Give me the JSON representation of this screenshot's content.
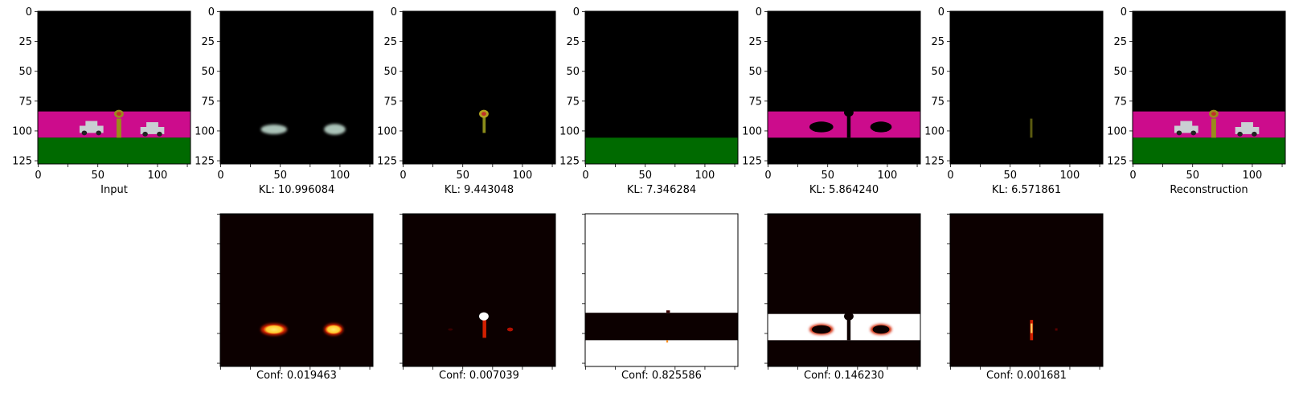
{
  "chart_data": {
    "type": "image-grid",
    "axis_range": [
      0,
      127
    ],
    "ticks": [
      0,
      25,
      50,
      75,
      100,
      125
    ],
    "xtick_labels": [
      "0",
      "50",
      "100"
    ],
    "ytick_labels": [
      "0",
      "25",
      "50",
      "75",
      "100",
      "125"
    ],
    "top_row": [
      {
        "label": "Input",
        "kind": "scene"
      },
      {
        "label": "KL: 10.996084",
        "kind": "cars"
      },
      {
        "label": "KL: 9.443048",
        "kind": "hydrant"
      },
      {
        "label": "KL: 7.346284",
        "kind": "ground"
      },
      {
        "label": "KL: 5.864240",
        "kind": "road"
      },
      {
        "label": "KL: 6.571861",
        "kind": "pole"
      },
      {
        "label": "Reconstruction",
        "kind": "scene"
      }
    ],
    "bottom_row": [
      {
        "label": "Conf: 0.019463",
        "value": 0.019463,
        "kind": "cars"
      },
      {
        "label": "Conf: 0.007039",
        "value": 0.007039,
        "kind": "hydrant"
      },
      {
        "label": "Conf: 0.825586",
        "value": 0.825586,
        "kind": "ground"
      },
      {
        "label": "Conf: 0.146230",
        "value": 0.14623,
        "kind": "road"
      },
      {
        "label": "Conf: 0.001681",
        "value": 0.001681,
        "kind": "pole"
      }
    ],
    "colors": {
      "sky": "#000000",
      "road": "#cc0c8c",
      "grass": "#006a00",
      "car": "#c9cfd2",
      "hydrant": "#9a8c1a",
      "heat_dark": "#0c0000",
      "heat_hot": "#ffe870",
      "heat_mid": "#d22000",
      "heat_white": "#ffffff"
    }
  }
}
